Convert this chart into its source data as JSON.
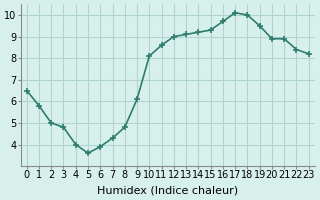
{
  "x": [
    0,
    1,
    2,
    3,
    4,
    5,
    6,
    7,
    8,
    9,
    10,
    11,
    12,
    13,
    14,
    15,
    16,
    17,
    18,
    19,
    20,
    21,
    22,
    23
  ],
  "y": [
    6.5,
    5.8,
    5.0,
    4.8,
    4.0,
    3.6,
    3.9,
    4.3,
    4.8,
    6.1,
    8.1,
    8.6,
    9.0,
    9.1,
    9.2,
    9.3,
    9.7,
    10.1,
    10.0,
    9.5,
    8.9,
    8.9,
    8.4,
    8.2
  ],
  "line_color": "#2e7d6e",
  "marker": "+",
  "bg_color": "#d8f0ec",
  "grid_color": "#b0d4ce",
  "xlabel": "Humidex (Indice chaleur)",
  "xlim": [
    -0.5,
    23.5
  ],
  "ylim": [
    3.0,
    10.5
  ],
  "yticks": [
    4,
    5,
    6,
    7,
    8,
    9,
    10
  ],
  "xticks": [
    0,
    1,
    2,
    3,
    4,
    5,
    6,
    7,
    8,
    9,
    10,
    11,
    12,
    13,
    14,
    15,
    16,
    17,
    18,
    19,
    20,
    21,
    22,
    23
  ],
  "xtick_labels": [
    "0",
    "1",
    "2",
    "3",
    "4",
    "5",
    "6",
    "7",
    "8",
    "9",
    "10",
    "11",
    "12",
    "13",
    "14",
    "15",
    "16",
    "17",
    "18",
    "19",
    "20",
    "21",
    "22",
    "23"
  ],
  "title_fontsize": 7,
  "xlabel_fontsize": 8,
  "tick_fontsize": 7,
  "line_width": 1.2,
  "marker_size": 4
}
